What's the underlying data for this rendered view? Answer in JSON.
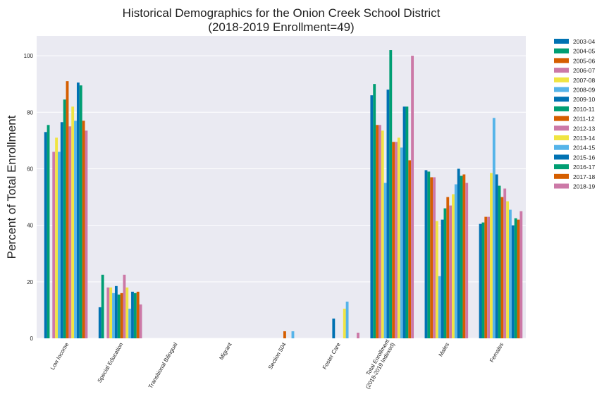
{
  "chart_data": {
    "type": "bar",
    "title": "Historical Demographics for the Onion Creek School District",
    "subtitle": "(2018-2019 Enrollment=49)",
    "xlabel": "",
    "ylabel": "Percent of Total Enrollment",
    "ylim": [
      0,
      107
    ],
    "yticks": [
      0,
      20,
      40,
      60,
      80,
      100
    ],
    "grid": true,
    "legend_position": "outside-right",
    "categories": [
      "Low Income",
      "Special Education",
      "Transitional Bilingual",
      "Migrant",
      "Section 504",
      "Foster Care",
      "Total Enrollment\n(2018-2019 Indexed)",
      "Males",
      "Females"
    ],
    "series": [
      {
        "name": "2003-04",
        "color": "#0072b2",
        "values": [
          73,
          11,
          0,
          0,
          0,
          0,
          86,
          59.5,
          40.5
        ]
      },
      {
        "name": "2004-05",
        "color": "#009e73",
        "values": [
          75.5,
          22.5,
          0,
          0,
          0,
          0,
          90,
          59,
          41
        ]
      },
      {
        "name": "2005-06",
        "color": "#d55e00",
        "values": [
          0,
          0,
          0,
          0,
          0,
          0,
          75.5,
          57,
          43
        ]
      },
      {
        "name": "2006-07",
        "color": "#cc79a7",
        "values": [
          66,
          18,
          0,
          0,
          0,
          0,
          75.5,
          57,
          43
        ]
      },
      {
        "name": "2007-08",
        "color": "#f0e442",
        "values": [
          71,
          18,
          0,
          0,
          0,
          0,
          73.5,
          41.5,
          58.5
        ]
      },
      {
        "name": "2008-09",
        "color": "#56b4e9",
        "values": [
          66,
          16,
          0,
          0,
          0,
          0,
          55,
          22,
          78
        ]
      },
      {
        "name": "2009-10",
        "color": "#0072b2",
        "values": [
          76.5,
          18.5,
          0,
          0,
          0,
          7,
          88,
          42,
          58
        ]
      },
      {
        "name": "2010-11",
        "color": "#009e73",
        "values": [
          84.5,
          15.5,
          0,
          0,
          0,
          0,
          102,
          46,
          54
        ]
      },
      {
        "name": "2011-12",
        "color": "#d55e00",
        "values": [
          91,
          16,
          0,
          0,
          2.5,
          0,
          69.5,
          50,
          50
        ]
      },
      {
        "name": "2012-13",
        "color": "#cc79a7",
        "values": [
          75,
          22.5,
          0,
          0,
          0,
          0,
          69.5,
          47,
          53
        ]
      },
      {
        "name": "2013-14",
        "color": "#f0e442",
        "values": [
          82,
          18,
          0,
          0,
          0,
          10.5,
          71,
          51,
          48.5
        ]
      },
      {
        "name": "2014-15",
        "color": "#56b4e9",
        "values": [
          77,
          10.5,
          0,
          0,
          2.5,
          13,
          67.5,
          54.5,
          45.5
        ]
      },
      {
        "name": "2015-16",
        "color": "#0072b2",
        "values": [
          90.5,
          16.5,
          0,
          0,
          0,
          0,
          82,
          60,
          40
        ]
      },
      {
        "name": "2016-17",
        "color": "#009e73",
        "values": [
          89.5,
          16,
          0,
          0,
          0,
          0,
          82,
          57.5,
          42.5
        ]
      },
      {
        "name": "2017-18",
        "color": "#d55e00",
        "values": [
          77,
          16.5,
          0,
          0,
          0,
          0,
          63,
          58,
          42
        ]
      },
      {
        "name": "2018-19",
        "color": "#cc79a7",
        "values": [
          73.5,
          12,
          0,
          0,
          0,
          2,
          100,
          55,
          45
        ]
      }
    ]
  }
}
